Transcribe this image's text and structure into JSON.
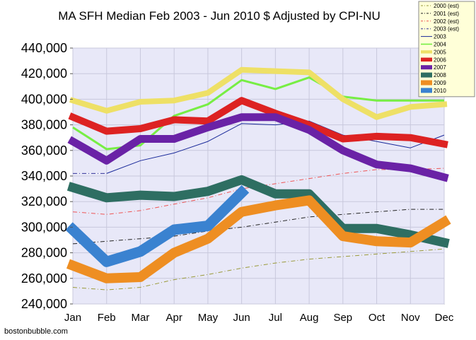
{
  "chart_data": {
    "type": "line",
    "title": "MA SFH Median Feb 2003 - Jun 2010 $ Adjusted by CPI-NU",
    "xlabel": "",
    "ylabel": "",
    "categories": [
      "Jan",
      "Feb",
      "Mar",
      "Apr",
      "May",
      "Jun",
      "Jul",
      "Aug",
      "Sep",
      "Oct",
      "Nov",
      "Dec"
    ],
    "ylim": [
      240000,
      440000
    ],
    "yticks": [
      240000,
      260000,
      280000,
      300000,
      320000,
      340000,
      360000,
      380000,
      400000,
      420000,
      440000
    ],
    "ytick_labels": [
      "240,000",
      "260,000",
      "280,000",
      "300,000",
      "320,000",
      "340,000",
      "360,000",
      "380,000",
      "400,000",
      "420,000",
      "440,000"
    ],
    "grid": true,
    "legend_position": "top-right",
    "credit": "bostonbubble.com",
    "series": [
      {
        "name": "2000 (est)",
        "color": "#9a9a3a",
        "style": "dashdot",
        "width": 1,
        "values": [
          253000,
          251000,
          253000,
          259000,
          263000,
          268000,
          272000,
          275000,
          277000,
          279000,
          281000,
          283000
        ]
      },
      {
        "name": "2001 (est)",
        "color": "#222222",
        "style": "dashdot",
        "width": 1,
        "values": [
          287000,
          289000,
          291000,
          293000,
          297000,
          300000,
          304000,
          308000,
          310000,
          312000,
          314000,
          314000
        ]
      },
      {
        "name": "2002 (est)",
        "color": "#ee5555",
        "style": "dashdot",
        "width": 1,
        "values": [
          312000,
          310000,
          313000,
          318000,
          323000,
          330000,
          334000,
          338000,
          342000,
          345000,
          345000,
          346000
        ]
      },
      {
        "name": "2003 (est)",
        "color": "#333399",
        "style": "dashdot",
        "width": 1,
        "values": [
          342000,
          342000,
          null,
          null,
          null,
          null,
          null,
          null,
          null,
          null,
          null,
          null
        ]
      },
      {
        "name": "2003",
        "color": "#1a2a9a",
        "style": "solid",
        "width": 1,
        "values": [
          null,
          342000,
          352000,
          358000,
          367000,
          381000,
          380000,
          383000,
          372000,
          367000,
          362000,
          372000
        ]
      },
      {
        "name": "2004",
        "color": "#77ee44",
        "style": "solid",
        "width": 3,
        "values": [
          378000,
          361000,
          364000,
          387000,
          396000,
          415000,
          408000,
          417000,
          402000,
          399000,
          399000,
          399000
        ]
      },
      {
        "name": "2005",
        "color": "#eee066",
        "style": "solid",
        "width": 8,
        "values": [
          399000,
          391000,
          398000,
          399000,
          405000,
          423000,
          422000,
          421000,
          400000,
          386000,
          394000,
          396000
        ]
      },
      {
        "name": "2006",
        "color": "#dd2222",
        "style": "solid",
        "width": 10,
        "values": [
          386000,
          375000,
          377000,
          384000,
          383000,
          399000,
          389000,
          380000,
          369000,
          371000,
          370000,
          365000
        ]
      },
      {
        "name": "2007",
        "color": "#6a22a6",
        "style": "solid",
        "width": 11,
        "values": [
          367000,
          352000,
          369000,
          369000,
          378000,
          386000,
          386000,
          376000,
          360000,
          349000,
          346000,
          339000
        ]
      },
      {
        "name": "2008",
        "color": "#2e6e62",
        "style": "solid",
        "width": 13,
        "values": [
          331000,
          323000,
          325000,
          324000,
          328000,
          337000,
          326000,
          326000,
          299000,
          299000,
          294000,
          288000
        ]
      },
      {
        "name": "2009",
        "color": "#ee8e22",
        "style": "solid",
        "width": 14,
        "values": [
          270000,
          260000,
          261000,
          280000,
          291000,
          312000,
          317000,
          321000,
          293000,
          289000,
          288000,
          304000
        ]
      },
      {
        "name": "2010",
        "color": "#3a82d0",
        "style": "solid",
        "width": 15,
        "values": [
          298000,
          273000,
          281000,
          298000,
          301000,
          327000,
          null,
          null,
          null,
          null,
          null,
          null
        ]
      }
    ]
  }
}
